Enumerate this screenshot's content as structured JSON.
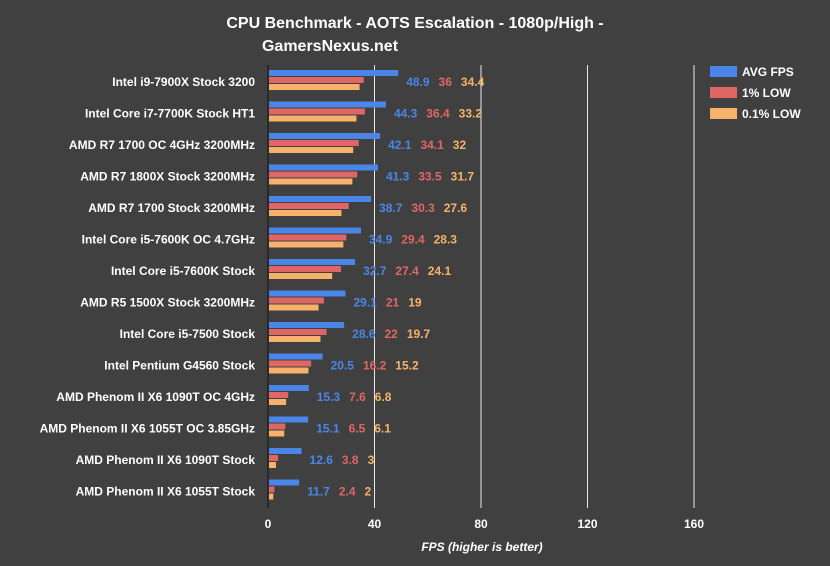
{
  "chart_data": {
    "type": "bar",
    "orientation": "horizontal",
    "title_line1": "CPU Benchmark - AOTS Escalation - 1080p/High -",
    "title_line2": "GamersNexus.net",
    "xlabel": "FPS (higher is better)",
    "ylabel": "",
    "xlim": [
      0,
      180
    ],
    "xticks": [
      0,
      40,
      80,
      120,
      160
    ],
    "grid": "vertical",
    "legend_position": "top-right",
    "categories": [
      "Intel i9-7900X Stock 3200",
      "Intel Core i7-7700K Stock HT1",
      "AMD R7 1700 OC 4GHz 3200MHz",
      "AMD R7 1800X Stock 3200MHz",
      "AMD R7 1700 Stock 3200MHz",
      "Intel Core i5-7600K OC 4.7GHz",
      "Intel Core i5-7600K Stock",
      "AMD R5 1500X Stock 3200MHz",
      "Intel Core i5-7500 Stock",
      "Intel Pentium G4560 Stock",
      "AMD Phenom II X6 1090T OC 4GHz",
      "AMD Phenom II X6 1055T OC 3.85GHz",
      "AMD Phenom II X6 1090T Stock",
      "AMD Phenom II X6 1055T Stock"
    ],
    "series": [
      {
        "name": "AVG FPS",
        "color": "#4a86e8",
        "values": [
          48.9,
          44.3,
          42.1,
          41.3,
          38.7,
          34.9,
          32.7,
          29.1,
          28.6,
          20.5,
          15.3,
          15.1,
          12.6,
          11.7
        ]
      },
      {
        "name": "1% LOW",
        "color": "#e06666",
        "values": [
          36,
          36.4,
          34.1,
          33.5,
          30.3,
          29.4,
          27.4,
          21,
          22.0,
          16.2,
          7.6,
          6.5,
          3.8,
          2.4
        ]
      },
      {
        "name": "0.1% LOW",
        "color": "#f6b26b",
        "values": [
          34.4,
          33.2,
          32,
          31.7,
          27.6,
          28.3,
          24.1,
          19,
          19.7,
          15.2,
          6.8,
          6.1,
          3,
          2
        ]
      }
    ]
  }
}
